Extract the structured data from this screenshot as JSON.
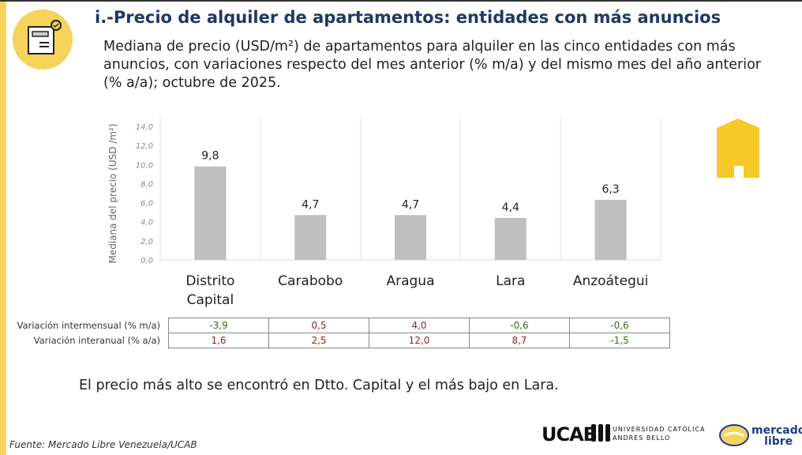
{
  "header": {
    "title": "i.-Precio de alquiler de apartamentos: entidades con más anuncios",
    "subtitle": "Mediana de precio (USD/m²) de apartamentos para alquiler en las cinco entidades con más anuncios, con variaciones respecto del mes anterior (% m/a) y del mismo mes del año anterior (% a/a); octubre de 2025."
  },
  "chart_data": {
    "type": "bar",
    "categories": [
      "Distrito Capital",
      "Carabobo",
      "Aragua",
      "Lara",
      "Anzoátegui"
    ],
    "values": [
      9.8,
      4.7,
      4.7,
      4.4,
      6.3
    ],
    "value_labels": [
      "9,8",
      "4,7",
      "4,7",
      "4,4",
      "6,3"
    ],
    "ylabel": "Mediana del precio (USD /m²)",
    "ylim": [
      0,
      14
    ],
    "yticks": [
      "0,0",
      "2,0",
      "4,0",
      "6,0",
      "8,0",
      "10,0",
      "12,0",
      "14,0"
    ],
    "grid": "vertical separators",
    "bar_color": "#bfbfbf"
  },
  "table": {
    "rows": [
      {
        "label": "Variación intermensual (% m/a)",
        "values": [
          "-3,9",
          "0,5",
          "4,0",
          "-0,6",
          "-0,6"
        ]
      },
      {
        "label": "Variación interanual (% a/a)",
        "values": [
          "1,6",
          "2,5",
          "12,0",
          "8,7",
          "-1,5"
        ]
      }
    ],
    "positive_color": "#9b1c1c",
    "negative_color": "#3a6b1f"
  },
  "conclusion": "El precio más alto se encontró en Dtto. Capital y el más bajo en Lara.",
  "source": "Fuente: Mercado Libre Venezuela/UCAB",
  "logos": {
    "ucab": "UCAB",
    "ucab_full_1": "UNIVERSIDAD CATÓLICA",
    "ucab_full_2": "ANDRÉS BELLO",
    "ml_1": "mercado",
    "ml_2": "libre"
  },
  "accent": "#f6d35a"
}
